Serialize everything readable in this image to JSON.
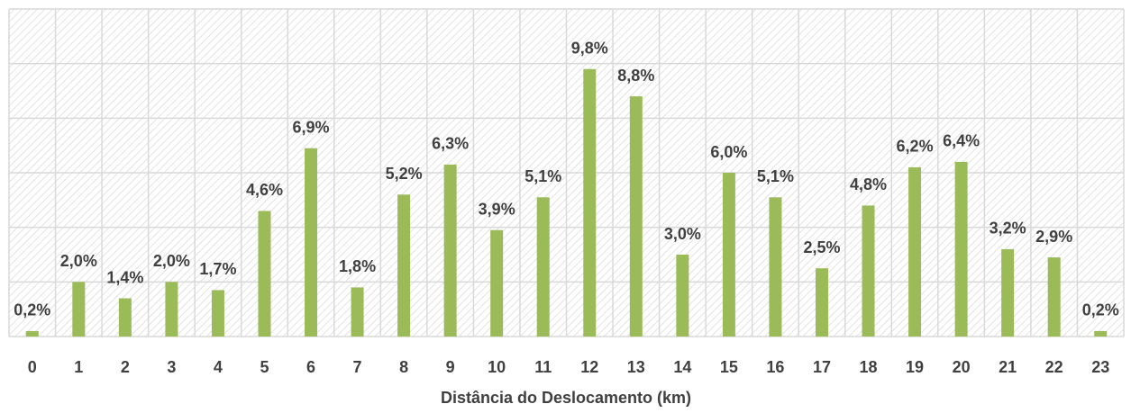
{
  "chart_data": {
    "type": "bar",
    "x_label": "Distância do Deslocamento (km)",
    "categories": [
      "0",
      "1",
      "2",
      "3",
      "4",
      "5",
      "6",
      "7",
      "8",
      "9",
      "10",
      "11",
      "12",
      "13",
      "14",
      "15",
      "16",
      "17",
      "18",
      "19",
      "20",
      "21",
      "22",
      "23"
    ],
    "values": [
      0.2,
      2.0,
      1.4,
      2.0,
      1.7,
      4.6,
      6.9,
      1.8,
      5.2,
      6.3,
      3.9,
      5.1,
      9.8,
      8.8,
      3.0,
      6.0,
      5.1,
      2.5,
      4.8,
      6.2,
      6.4,
      3.2,
      2.9,
      0.2
    ],
    "value_labels": [
      "0,2%",
      "2,0%",
      "1,4%",
      "2,0%",
      "1,7%",
      "4,6%",
      "6,9%",
      "1,8%",
      "5,2%",
      "6,3%",
      "3,9%",
      "5,1%",
      "9,8%",
      "8,8%",
      "3,0%",
      "6,0%",
      "5,1%",
      "2,5%",
      "4,8%",
      "6,2%",
      "6,4%",
      "3,2%",
      "2,9%",
      "0,2%"
    ],
    "color": "#9bbb59",
    "ylim": [
      0,
      12
    ],
    "yticks": [
      0,
      2,
      4,
      6,
      8,
      10,
      12
    ],
    "grid": true
  }
}
